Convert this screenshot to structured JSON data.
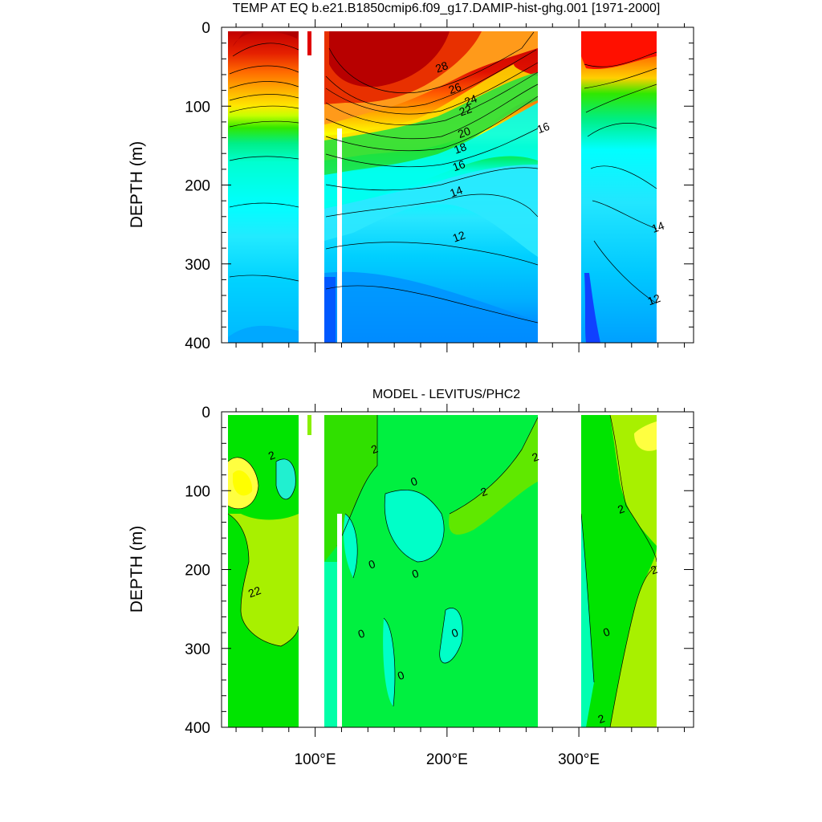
{
  "chart_data": [
    {
      "type": "contour",
      "title": "TEMP AT EQ b.e21.B1850cmip6.f09_g17.DAMIP-hist-ghg.001 [1971-2000]",
      "ylabel": "DEPTH (m)",
      "xlabel": "",
      "ylim": [
        0,
        400
      ],
      "y_reversed": true,
      "yticks": [
        "0",
        "100",
        "200",
        "300",
        "400"
      ],
      "contour_labels": [
        {
          "text": "28",
          "lon": 197,
          "depth": 55
        },
        {
          "text": "26",
          "lon": 207,
          "depth": 82
        },
        {
          "text": "24",
          "lon": 219,
          "depth": 97
        },
        {
          "text": "22",
          "lon": 215,
          "depth": 110
        },
        {
          "text": "20",
          "lon": 214,
          "depth": 138
        },
        {
          "text": "18",
          "lon": 211,
          "depth": 158
        },
        {
          "text": "16",
          "lon": 210,
          "depth": 180
        },
        {
          "text": "16",
          "lon": 274,
          "depth": 132
        },
        {
          "text": "14",
          "lon": 208,
          "depth": 213
        },
        {
          "text": "12",
          "lon": 210,
          "depth": 270
        },
        {
          "text": "14",
          "lon": 361,
          "depth": 258
        },
        {
          "text": "12",
          "lon": 358,
          "depth": 350
        }
      ]
    },
    {
      "type": "contour",
      "title": "MODEL - LEVITUS/PHC2",
      "ylabel": "DEPTH (m)",
      "ylim": [
        0,
        400
      ],
      "y_reversed": true,
      "yticks": [
        "0",
        "100",
        "200",
        "300",
        "400"
      ],
      "xticks": [
        "100°E",
        "200°E",
        "300°E"
      ],
      "contour_labels": [
        {
          "text": "2",
          "lon": 68,
          "depth": 60
        },
        {
          "text": "2",
          "lon": 146,
          "depth": 52
        },
        {
          "text": "2",
          "lon": 268,
          "depth": 62
        },
        {
          "text": "0",
          "lon": 176,
          "depth": 93
        },
        {
          "text": "2",
          "lon": 229,
          "depth": 106
        },
        {
          "text": "2",
          "lon": 333,
          "depth": 128
        },
        {
          "text": "0",
          "lon": 144,
          "depth": 198
        },
        {
          "text": "0",
          "lon": 177,
          "depth": 210
        },
        {
          "text": "2",
          "lon": 358,
          "depth": 205
        },
        {
          "text": "22",
          "lon": 55,
          "depth": 233
        },
        {
          "text": "0",
          "lon": 136,
          "depth": 286
        },
        {
          "text": "0",
          "lon": 207,
          "depth": 285
        },
        {
          "text": "0",
          "lon": 322,
          "depth": 284
        },
        {
          "text": "0",
          "lon": 166,
          "depth": 339
        },
        {
          "text": "2",
          "lon": 318,
          "depth": 394
        }
      ]
    }
  ]
}
